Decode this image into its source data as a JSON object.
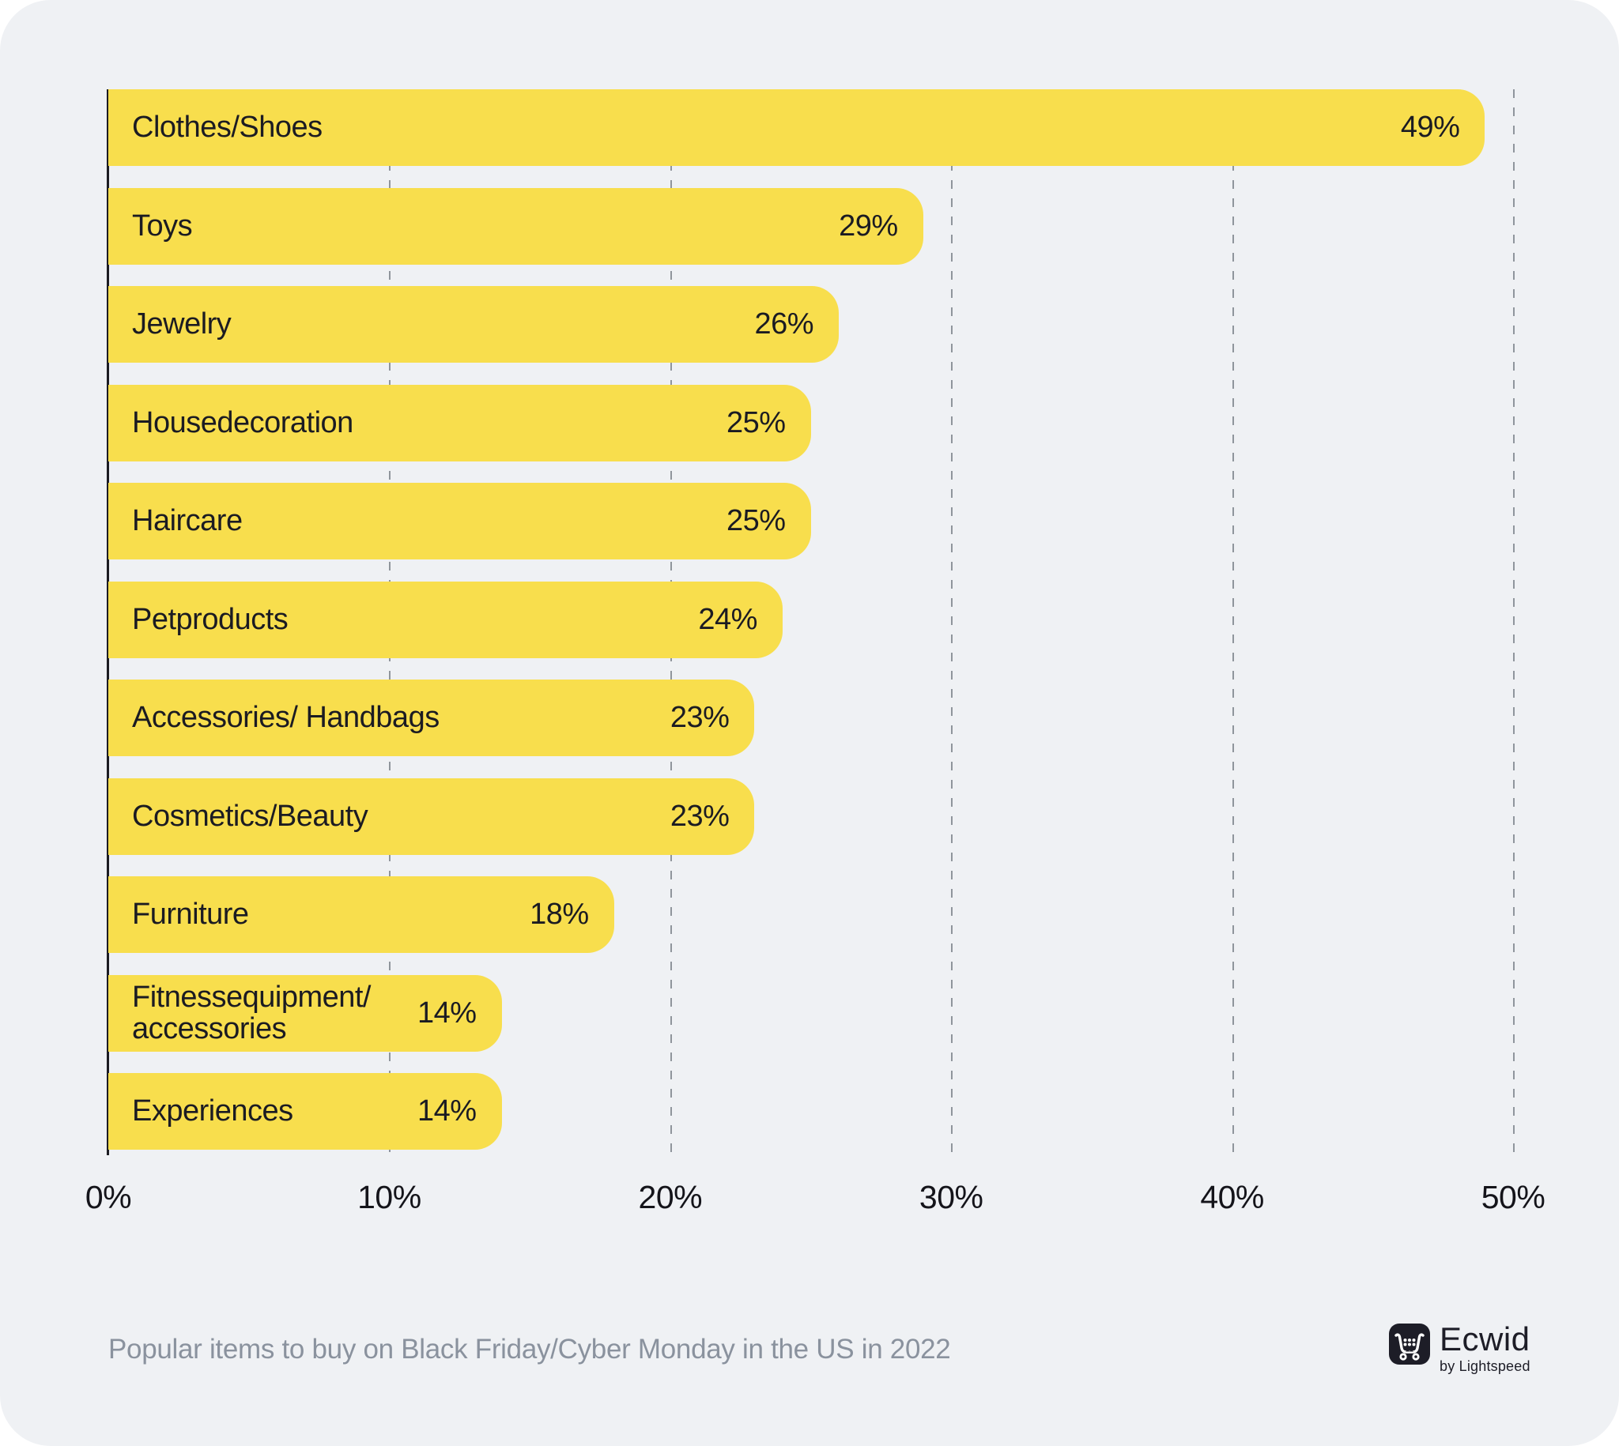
{
  "chart_data": {
    "type": "bar",
    "orientation": "horizontal",
    "title": "",
    "categories": [
      "Clothes/Shoes",
      "Toys",
      "Jewelry",
      "Housedecoration",
      "Haircare",
      "Petproducts",
      "Accessories/ Handbags",
      "Cosmetics/Beauty",
      "Furniture",
      "Fitnessequipment/\naccessories",
      "Experiences"
    ],
    "values": [
      49,
      29,
      26,
      25,
      25,
      24,
      23,
      23,
      18,
      14,
      14
    ],
    "value_labels": [
      "49%",
      "29%",
      "26%",
      "25%",
      "25%",
      "24%",
      "23%",
      "23%",
      "18%",
      "14%",
      "14%"
    ],
    "xlim": [
      0,
      50
    ],
    "xticks": [
      0,
      10,
      20,
      30,
      40,
      50
    ],
    "tick_labels": [
      "0%",
      "10%",
      "20%",
      "30%",
      "40%",
      "50%"
    ],
    "grid": "vertical-dashed",
    "legend": "none",
    "bar_color": "#F8DE4D",
    "label_position": "inside-left",
    "value_position": "inside-right"
  },
  "footer": {
    "caption": "Popular items to buy on Black Friday/Cyber Monday in the US in 2022",
    "logo": {
      "brand": "Ecwid",
      "sub": "by Lightspeed"
    }
  },
  "colors": {
    "background": "#EFF1F4",
    "page": "#FFFFFF",
    "bar": "#F8DE4D",
    "bar_text": "#1B1B22",
    "axis": "#1C1C22",
    "gridline": "#8F959C",
    "tick_text": "#14141A",
    "caption_text": "#8A929E",
    "logo": "#1D1D27"
  }
}
